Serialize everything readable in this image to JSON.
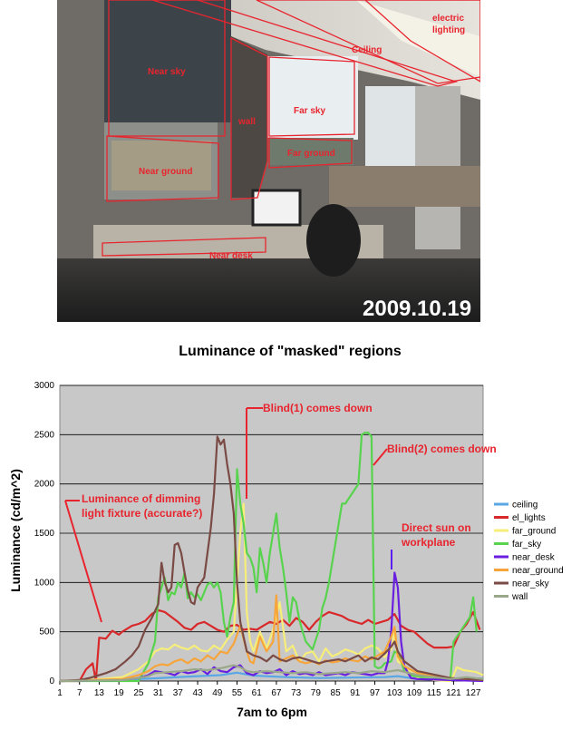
{
  "photo": {
    "date_stamp": "2009.10.19",
    "region_labels": {
      "near_sky": "Near sky",
      "wall": "wall",
      "far_sky": "Far sky",
      "ceiling": "Ceiling",
      "electric_lighting_1": "electric",
      "electric_lighting_2": "lighting",
      "near_ground": "Near ground",
      "far_ground": "Far ground",
      "near_desk": "Near desk"
    }
  },
  "annotations": {
    "blind1": "Blind(1) comes down",
    "blind2": "Blind(2) comes down",
    "dimming_1": "Luminance of dimming",
    "dimming_2": "light fixture (accurate?)",
    "sun_1": "Direct sun on",
    "sun_2": "workplane"
  },
  "colors": {
    "ceiling": "#5aa7e6",
    "el_lights": "#d8282a",
    "far_ground": "#f7ee7a",
    "far_sky": "#58d34e",
    "near_desk": "#6a1fe0",
    "near_ground": "#f7a43a",
    "near_sky": "#7a4a45",
    "wall": "#9aa88a",
    "plot_bg": "#c8c8c8",
    "annotation": "#e8242e"
  },
  "chart_data": {
    "type": "line",
    "title": "Luminance of \"masked\" regions",
    "xlabel": "7am to 6pm",
    "ylabel": "Luminance (cd/m^2)",
    "ylim": [
      0,
      3000
    ],
    "yticks": [
      "0",
      "500",
      "1000",
      "1500",
      "2000",
      "2500",
      "3000"
    ],
    "xlim": [
      1,
      130
    ],
    "xticks": [
      "1",
      "7",
      "13",
      "19",
      "25",
      "31",
      "37",
      "43",
      "49",
      "55",
      "61",
      "67",
      "73",
      "79",
      "85",
      "91",
      "97",
      "103",
      "109",
      "115",
      "121",
      "127"
    ],
    "grid": true,
    "legend_position": "right",
    "series": [
      {
        "name": "ceiling",
        "color": "#5aa7e6",
        "x": [
          1,
          10,
          20,
          30,
          40,
          50,
          55,
          60,
          70,
          80,
          90,
          100,
          104,
          110,
          120,
          125,
          130
        ],
        "y": [
          0,
          5,
          12,
          28,
          45,
          60,
          85,
          55,
          40,
          30,
          35,
          40,
          50,
          20,
          10,
          30,
          25
        ]
      },
      {
        "name": "el_lights",
        "color": "#d8282a",
        "x": [
          1,
          7,
          9,
          11,
          12,
          13,
          15,
          17,
          19,
          20,
          23,
          25,
          27,
          29,
          31,
          33,
          35,
          37,
          39,
          41,
          43,
          45,
          47,
          49,
          51,
          53,
          55,
          57,
          59,
          61,
          63,
          65,
          67,
          69,
          71,
          73,
          75,
          77,
          79,
          81,
          83,
          85,
          87,
          89,
          91,
          93,
          95,
          97,
          99,
          101,
          103,
          105,
          107,
          109,
          111,
          113,
          115,
          117,
          119,
          121,
          123,
          125,
          127,
          129
        ],
        "y": [
          0,
          0,
          120,
          180,
          0,
          440,
          430,
          510,
          470,
          500,
          560,
          580,
          610,
          680,
          720,
          700,
          650,
          600,
          540,
          520,
          580,
          600,
          560,
          520,
          500,
          560,
          570,
          520,
          530,
          520,
          560,
          600,
          580,
          620,
          560,
          640,
          600,
          520,
          600,
          660,
          700,
          680,
          660,
          620,
          600,
          580,
          620,
          580,
          600,
          620,
          680,
          560,
          520,
          500,
          440,
          380,
          340,
          340,
          340,
          350,
          500,
          580,
          700,
          520
        ]
      },
      {
        "name": "far_ground",
        "color": "#f7ee7a",
        "x": [
          1,
          10,
          20,
          25,
          28,
          30,
          32,
          34,
          36,
          38,
          40,
          42,
          44,
          46,
          48,
          50,
          52,
          54,
          56,
          57,
          58,
          59,
          60,
          62,
          64,
          66,
          68,
          70,
          72,
          74,
          76,
          78,
          80,
          82,
          84,
          86,
          88,
          90,
          92,
          94,
          96,
          98,
          100,
          102,
          103,
          104,
          106,
          108,
          110,
          115,
          120,
          121,
          122,
          124,
          126,
          128,
          130
        ],
        "y": [
          0,
          10,
          40,
          120,
          200,
          300,
          330,
          320,
          370,
          340,
          320,
          360,
          310,
          300,
          360,
          320,
          420,
          500,
          1500,
          1800,
          700,
          400,
          300,
          500,
          330,
          520,
          800,
          300,
          360,
          200,
          280,
          300,
          200,
          330,
          250,
          280,
          320,
          300,
          270,
          330,
          360,
          330,
          240,
          320,
          500,
          200,
          150,
          90,
          40,
          10,
          0,
          60,
          140,
          110,
          100,
          90,
          60
        ]
      },
      {
        "name": "far_sky",
        "color": "#58d34e",
        "x": [
          1,
          25,
          28,
          30,
          31,
          32,
          33,
          34,
          35,
          36,
          37,
          38,
          39,
          40,
          41,
          42,
          43,
          44,
          45,
          46,
          47,
          48,
          49,
          50,
          51,
          52,
          53,
          54,
          55,
          56,
          57,
          58,
          59,
          60,
          61,
          62,
          63,
          64,
          65,
          66,
          67,
          68,
          69,
          70,
          71,
          72,
          73,
          74,
          75,
          76,
          77,
          78,
          79,
          80,
          81,
          82,
          83,
          84,
          85,
          86,
          87,
          88,
          89,
          90,
          91,
          92,
          93,
          94,
          95,
          96,
          97,
          98,
          99,
          100,
          101,
          102,
          103,
          104,
          105,
          106,
          107,
          108,
          109,
          110,
          111,
          112,
          113,
          114,
          115,
          116,
          117,
          118,
          119,
          120,
          121,
          122,
          123,
          124,
          125,
          126,
          127,
          128
        ],
        "y": [
          0,
          0,
          180,
          400,
          850,
          950,
          1050,
          820,
          900,
          880,
          1000,
          950,
          1100,
          840,
          900,
          850,
          880,
          820,
          900,
          980,
          1000,
          950,
          1000,
          900,
          600,
          450,
          650,
          800,
          2150,
          1800,
          1600,
          1300,
          1250,
          1150,
          900,
          1350,
          1200,
          1000,
          1300,
          1500,
          1700,
          1350,
          1150,
          900,
          600,
          850,
          800,
          620,
          500,
          400,
          360,
          320,
          420,
          520,
          740,
          840,
          1000,
          1200,
          1400,
          1600,
          1800,
          1800,
          1850,
          1900,
          1950,
          2000,
          2500,
          2520,
          2520,
          2480,
          150,
          130,
          140,
          180,
          190,
          200,
          300,
          280,
          200,
          100,
          80,
          60,
          50,
          50,
          40,
          40,
          40,
          40,
          40,
          30,
          20,
          20,
          20,
          10,
          400,
          450,
          500,
          550,
          600,
          650,
          850,
          500
        ]
      },
      {
        "name": "near_desk",
        "color": "#6a1fe0",
        "x": [
          1,
          20,
          25,
          28,
          30,
          32,
          34,
          36,
          38,
          40,
          42,
          44,
          46,
          48,
          50,
          52,
          54,
          56,
          57,
          58,
          60,
          62,
          64,
          66,
          68,
          70,
          72,
          74,
          76,
          78,
          80,
          82,
          84,
          86,
          88,
          90,
          92,
          94,
          96,
          98,
          100,
          101,
          102,
          103,
          104,
          105,
          106,
          108,
          110,
          120,
          130
        ],
        "y": [
          0,
          10,
          30,
          60,
          100,
          90,
          80,
          60,
          100,
          80,
          90,
          120,
          70,
          140,
          100,
          90,
          140,
          160,
          120,
          80,
          60,
          100,
          80,
          90,
          120,
          60,
          100,
          70,
          80,
          60,
          90,
          60,
          70,
          80,
          60,
          90,
          80,
          70,
          60,
          80,
          80,
          200,
          500,
          1100,
          950,
          400,
          150,
          30,
          20,
          10,
          0
        ]
      },
      {
        "name": "near_ground",
        "color": "#f7a43a",
        "x": [
          1,
          20,
          25,
          28,
          30,
          32,
          34,
          36,
          38,
          40,
          42,
          44,
          46,
          48,
          50,
          52,
          54,
          56,
          58,
          59,
          60,
          62,
          64,
          66,
          67,
          68,
          70,
          72,
          74,
          76,
          78,
          80,
          82,
          84,
          86,
          88,
          90,
          92,
          94,
          96,
          98,
          100,
          102,
          103,
          104,
          106,
          110,
          120,
          130
        ],
        "y": [
          0,
          20,
          60,
          100,
          150,
          170,
          160,
          200,
          220,
          180,
          230,
          200,
          260,
          220,
          300,
          280,
          380,
          560,
          300,
          200,
          180,
          450,
          300,
          400,
          870,
          200,
          230,
          260,
          200,
          180,
          200,
          170,
          210,
          190,
          200,
          230,
          210,
          200,
          250,
          220,
          260,
          300,
          450,
          550,
          250,
          150,
          80,
          30,
          10
        ]
      },
      {
        "name": "near_sky",
        "color": "#7a4a45",
        "x": [
          1,
          7,
          10,
          12,
          15,
          18,
          21,
          23,
          25,
          27,
          29,
          31,
          32,
          33,
          34,
          35,
          36,
          37,
          38,
          39,
          40,
          41,
          42,
          43,
          44,
          45,
          46,
          47,
          48,
          49,
          50,
          51,
          52,
          53,
          54,
          55,
          56,
          57,
          58,
          60,
          62,
          64,
          66,
          68,
          70,
          72,
          74,
          76,
          78,
          80,
          82,
          84,
          86,
          88,
          90,
          92,
          94,
          96,
          98,
          100,
          102,
          103,
          104,
          106,
          110,
          120,
          125,
          130
        ],
        "y": [
          0,
          10,
          30,
          50,
          80,
          120,
          200,
          260,
          350,
          520,
          640,
          780,
          1200,
          1000,
          900,
          950,
          1380,
          1400,
          1300,
          1100,
          920,
          800,
          780,
          950,
          1000,
          1050,
          1300,
          1550,
          1900,
          2480,
          2400,
          2450,
          2200,
          2000,
          1700,
          1000,
          600,
          450,
          300,
          260,
          240,
          200,
          260,
          220,
          200,
          230,
          240,
          220,
          200,
          180,
          200,
          210,
          220,
          200,
          230,
          260,
          200,
          240,
          220,
          280,
          350,
          400,
          300,
          200,
          100,
          30,
          20,
          10
        ]
      },
      {
        "name": "wall",
        "color": "#9aa88a",
        "x": [
          1,
          20,
          25,
          28,
          30,
          34,
          38,
          42,
          46,
          50,
          54,
          56,
          58,
          60,
          64,
          68,
          72,
          76,
          80,
          84,
          88,
          92,
          96,
          100,
          104,
          110,
          120,
          125,
          130
        ],
        "y": [
          0,
          10,
          30,
          50,
          80,
          90,
          100,
          120,
          110,
          130,
          160,
          140,
          100,
          90,
          100,
          90,
          80,
          90,
          70,
          80,
          90,
          80,
          100,
          90,
          110,
          60,
          20,
          40,
          20
        ]
      }
    ]
  }
}
